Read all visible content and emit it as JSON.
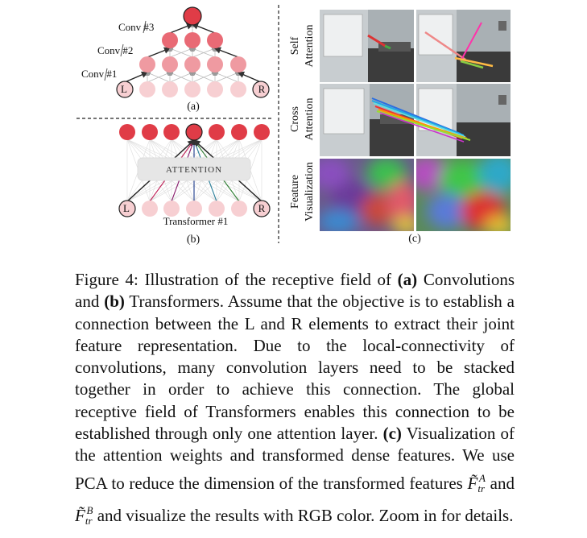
{
  "panel_a": {
    "conv_labels": [
      "Conv #3",
      "Conv #2",
      "Conv #1"
    ],
    "left_label": "L",
    "right_label": "R",
    "caption": "(a)"
  },
  "panel_b": {
    "attention_label": "ATTENTION",
    "transformer_label": "Transformer #1",
    "left_label": "L",
    "right_label": "R",
    "caption": "(b)"
  },
  "panel_c": {
    "row_labels": [
      [
        "Self",
        "Attention"
      ],
      [
        "Cross",
        "Attention"
      ],
      [
        "Feature",
        "Visualization"
      ]
    ],
    "caption": "(c)"
  },
  "caption": {
    "fig_label": "Figure 4:",
    "intro": " Illustration of the receptive field of ",
    "a_tag": "(a)",
    "text_a": " Convolutions and ",
    "b_tag": "(b)",
    "text_b": " Transformers. Assume that the objective is to establish a connection between the L and R elements to extract their joint feature representation. Due to the local-connectivity of convolutions, many convolution layers need to be stacked together in order to achieve this connection. The global receptive field of Transformers enables this connection to be established through only one attention layer. ",
    "c_tag": "(c)",
    "text_c": " Visualization of the attention weights and transformed dense features. We use PCA to reduce the dimension of the transformed features ",
    "math1": "F̃",
    "math1_sub": "tr",
    "math1_sup": "A",
    "and_word": " and ",
    "math2": "F̃",
    "math2_sub": "tr",
    "math2_sup": "B",
    "text_end": " and visualize the results with RGB color. Zoom in for details."
  }
}
